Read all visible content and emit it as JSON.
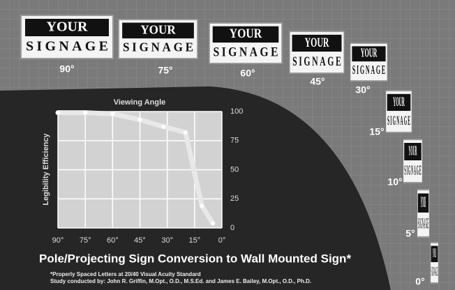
{
  "signs": {
    "line1": "YOUR",
    "line2": "SIGNAGE",
    "angles": [
      "90°",
      "75°",
      "60°",
      "45°",
      "30°",
      "15°",
      "10°",
      "5°",
      "0°"
    ]
  },
  "chart_data": {
    "type": "line",
    "title": "Pole/Projecting Sign Conversion to Wall Mounted Sign*",
    "notes": [
      "*Properly Spaced Letters at 20/40 Visual Acuity Standard",
      "Study conducted by: John R. Griffin, M.Opt., O.D., M.S.Ed. and James E. Bailey, M.Opt., O.D., Ph.D."
    ],
    "x_label": "Viewing Angle",
    "y_label": "Legibility Efficiency",
    "x": [
      90,
      75,
      60,
      45,
      32,
      20,
      11,
      5
    ],
    "series": [
      {
        "name": "Legibility Efficiency",
        "color": "#e8e8e8",
        "values": [
          99,
          99,
          98,
          93,
          87,
          82,
          19,
          4
        ]
      }
    ],
    "xlim": [
      90,
      0
    ],
    "xticks": [
      {
        "value": 90,
        "label": "90°"
      },
      {
        "value": 75,
        "label": "75°"
      },
      {
        "value": 60,
        "label": "60°"
      },
      {
        "value": 45,
        "label": "45°"
      },
      {
        "value": 30,
        "label": "30°"
      },
      {
        "value": 15,
        "label": "15°"
      },
      {
        "value": 0,
        "label": "0°"
      }
    ],
    "ylim": [
      0,
      100
    ],
    "yticks": [
      0,
      25,
      50,
      75,
      100
    ],
    "grid": true
  }
}
